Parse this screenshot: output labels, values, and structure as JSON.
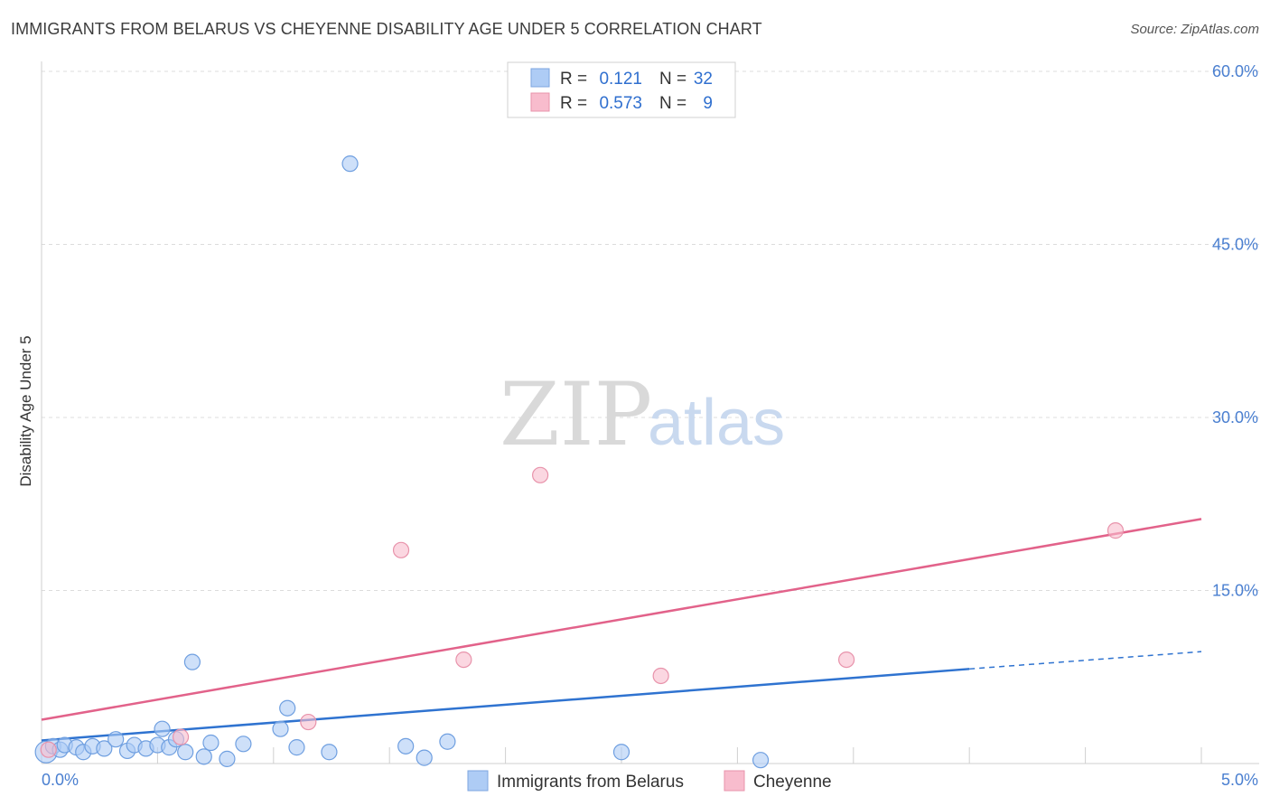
{
  "title": "IMMIGRANTS FROM BELARUS VS CHEYENNE DISABILITY AGE UNDER 5 CORRELATION CHART",
  "source": "Source: ZipAtlas.com",
  "watermark": {
    "zip": "ZIP",
    "atlas": "atlas"
  },
  "legend": {
    "rows": [
      {
        "r_label": "R =",
        "r_value": "0.121",
        "n_label": "N =",
        "n_value": "32",
        "color": "#aeccf5"
      },
      {
        "r_label": "R =",
        "r_value": "0.573",
        "n_label": "N =",
        "n_value": "9",
        "color": "#f8bccd"
      }
    ]
  },
  "bottom_legend": [
    {
      "label": "Immigrants from Belarus",
      "color": "#aeccf5"
    },
    {
      "label": "Cheyenne",
      "color": "#f8bccd"
    }
  ],
  "chart_data": {
    "type": "scatter",
    "title": "IMMIGRANTS FROM BELARUS VS CHEYENNE DISABILITY AGE UNDER 5 CORRELATION CHART",
    "xlabel": "",
    "ylabel": "Disability Age Under 5",
    "xlim": [
      0,
      5
    ],
    "ylim": [
      0,
      60
    ],
    "x_tick_labels": [
      "0.0%",
      "5.0%"
    ],
    "y_ticks": [
      15,
      30,
      45,
      60
    ],
    "y_tick_labels": [
      "15.0%",
      "30.0%",
      "45.0%",
      "60.0%"
    ],
    "grid": true,
    "series": [
      {
        "name": "Immigrants from Belarus",
        "color": "#aeccf5",
        "stroke": "#6f9fe0",
        "trend_color": "#2f73d0",
        "points": [
          [
            0.02,
            1.0
          ],
          [
            0.05,
            1.5
          ],
          [
            0.08,
            1.2
          ],
          [
            0.1,
            1.6
          ],
          [
            0.15,
            1.4
          ],
          [
            0.18,
            1.0
          ],
          [
            0.22,
            1.5
          ],
          [
            0.27,
            1.3
          ],
          [
            0.32,
            2.1
          ],
          [
            0.37,
            1.1
          ],
          [
            0.4,
            1.6
          ],
          [
            0.45,
            1.3
          ],
          [
            0.5,
            1.6
          ],
          [
            0.52,
            3.0
          ],
          [
            0.55,
            1.4
          ],
          [
            0.58,
            2.1
          ],
          [
            0.62,
            1.0
          ],
          [
            0.65,
            8.8
          ],
          [
            0.7,
            0.6
          ],
          [
            0.73,
            1.8
          ],
          [
            0.8,
            0.4
          ],
          [
            0.87,
            1.7
          ],
          [
            1.03,
            3.0
          ],
          [
            1.06,
            4.8
          ],
          [
            1.1,
            1.4
          ],
          [
            1.24,
            1.0
          ],
          [
            1.33,
            52.0
          ],
          [
            1.57,
            1.5
          ],
          [
            1.65,
            0.5
          ],
          [
            1.75,
            1.9
          ],
          [
            2.5,
            1.0
          ],
          [
            3.1,
            0.3
          ]
        ],
        "trend": {
          "x": [
            0,
            4.0
          ],
          "y": [
            2.0,
            8.2
          ]
        },
        "trend_dashed": {
          "x": [
            4.0,
            5.0
          ],
          "y": [
            8.2,
            9.7
          ]
        }
      },
      {
        "name": "Cheyenne",
        "color": "#f8bccd",
        "stroke": "#e893ab",
        "trend_color": "#e2628a",
        "points": [
          [
            0.03,
            1.2
          ],
          [
            0.6,
            2.3
          ],
          [
            1.15,
            3.6
          ],
          [
            1.55,
            18.5
          ],
          [
            1.82,
            9.0
          ],
          [
            2.15,
            25.0
          ],
          [
            2.67,
            7.6
          ],
          [
            3.47,
            9.0
          ],
          [
            4.63,
            20.2
          ]
        ],
        "trend": {
          "x": [
            0,
            5.0
          ],
          "y": [
            3.8,
            21.2
          ]
        }
      }
    ]
  }
}
